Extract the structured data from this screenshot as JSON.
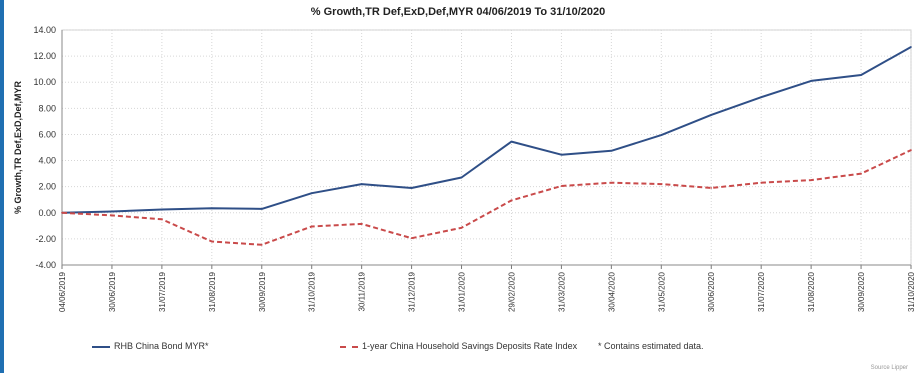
{
  "chart_data": {
    "type": "line",
    "title": "% Growth,TR Def,ExD,Def,MYR 04/06/2019 To 31/10/2020",
    "ylabel": "% Growth,TR Def,ExD,Def,MYR",
    "xlabel": "",
    "ylim": [
      -4.0,
      14.0
    ],
    "y_ticks": [
      "14.00",
      "12.00",
      "10.00",
      "8.00",
      "6.00",
      "4.00",
      "2.00",
      "0.00",
      "-2.00",
      "-4.00"
    ],
    "categories": [
      "04/06/2019",
      "30/06/2019",
      "31/07/2019",
      "31/08/2019",
      "30/09/2019",
      "31/10/2019",
      "30/11/2019",
      "31/12/2019",
      "31/01/2020",
      "29/02/2020",
      "31/03/2020",
      "30/04/2020",
      "31/05/2020",
      "30/06/2020",
      "31/07/2020",
      "31/08/2020",
      "30/09/2020",
      "31/10/2020"
    ],
    "grid": true,
    "legend_position": "bottom",
    "series": [
      {
        "name": "RHB China Bond MYR*",
        "color": "#2f4f87",
        "style": "solid",
        "values": [
          0.0,
          0.1,
          0.25,
          0.35,
          0.3,
          1.5,
          2.2,
          1.9,
          2.7,
          5.45,
          4.45,
          4.75,
          5.95,
          7.5,
          8.85,
          10.1,
          10.55,
          12.7
        ]
      },
      {
        "name": "1-year China Household Savings Deposits Rate Index",
        "color": "#c94a4a",
        "style": "dashed",
        "values": [
          0.0,
          -0.2,
          -0.5,
          -2.2,
          -2.45,
          -1.05,
          -0.85,
          -1.95,
          -1.15,
          0.95,
          2.05,
          2.3,
          2.2,
          1.9,
          2.3,
          2.5,
          3.0,
          4.8
        ]
      }
    ],
    "note": "* Contains estimated data."
  },
  "footer": {
    "source": "Source Lipper"
  }
}
